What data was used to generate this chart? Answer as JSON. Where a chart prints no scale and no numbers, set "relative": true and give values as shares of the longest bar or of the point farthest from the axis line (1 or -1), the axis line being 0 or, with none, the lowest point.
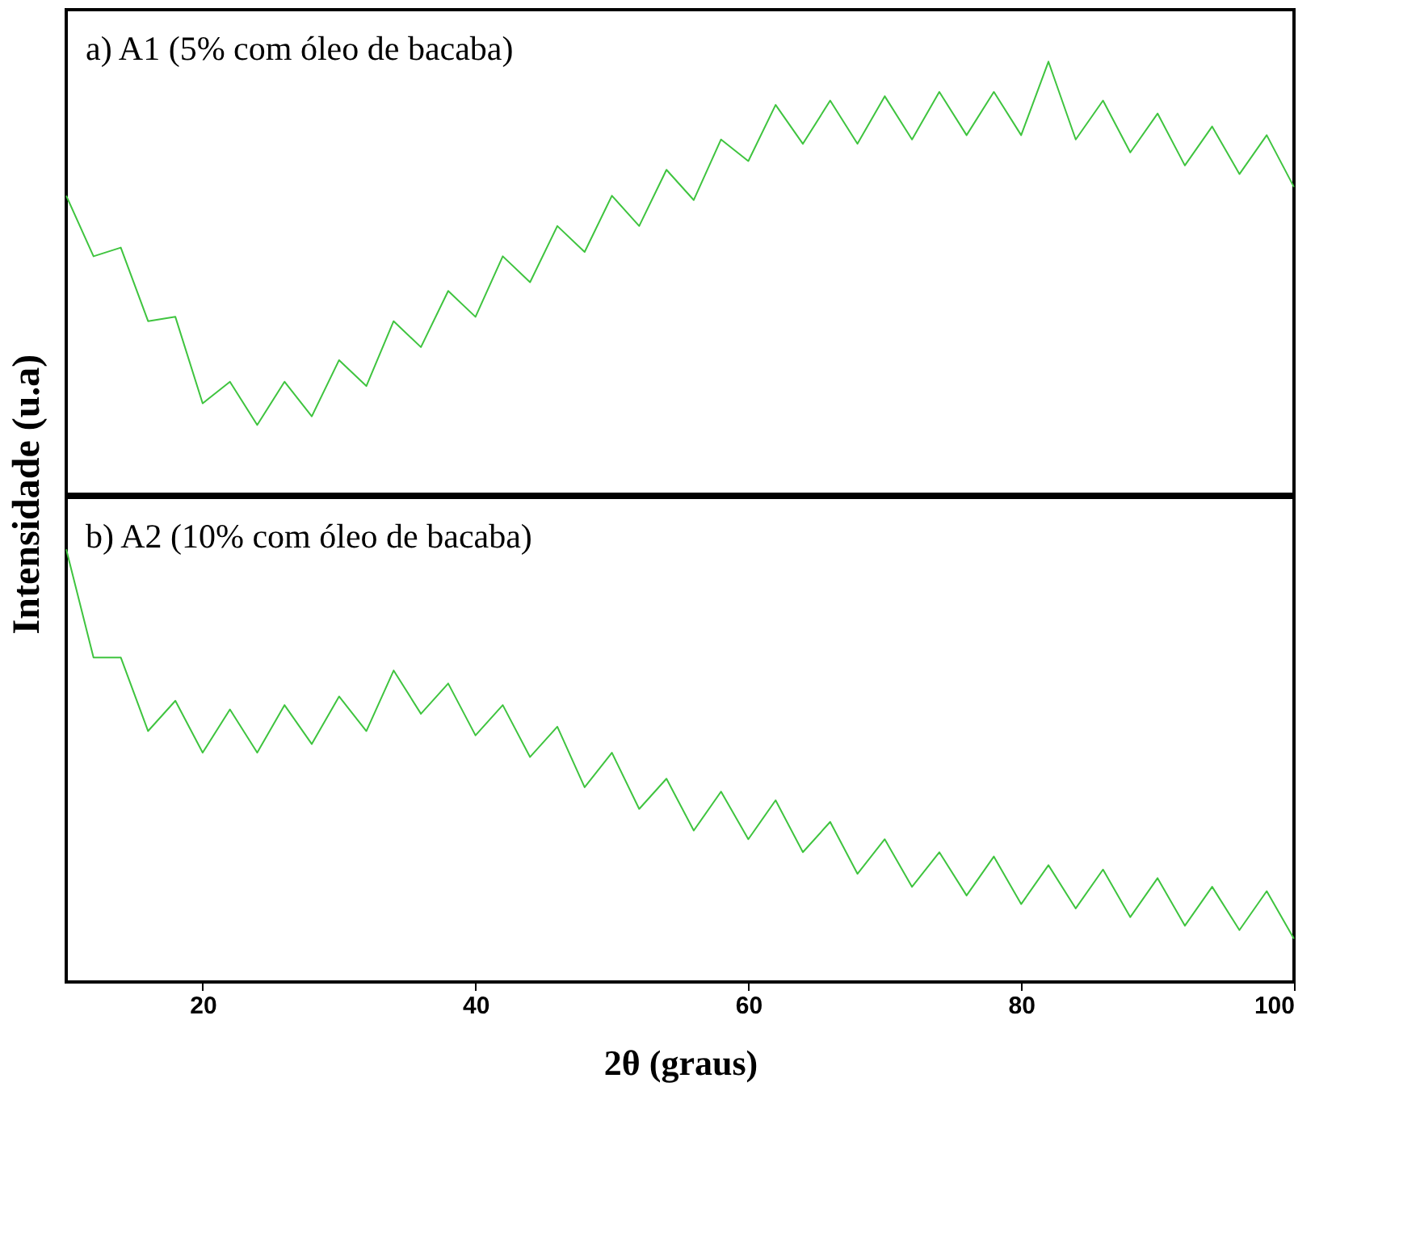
{
  "chart_data": [
    {
      "type": "line",
      "relative": true,
      "ylabel": "Intensidade (u.a)",
      "annotations": [
        "a) A1 (5% com óleo de bacaba)"
      ],
      "xlim": [
        10,
        100
      ],
      "xticks": [
        20,
        40,
        60,
        80,
        100
      ],
      "tick_labels": false,
      "grid": false,
      "x": [
        10,
        12,
        14,
        16,
        18,
        20,
        22,
        24,
        26,
        28,
        30,
        32,
        34,
        36,
        38,
        40,
        42,
        44,
        46,
        48,
        50,
        52,
        54,
        56,
        58,
        60,
        62,
        64,
        66,
        68,
        70,
        72,
        74,
        76,
        78,
        80,
        82,
        84,
        86,
        88,
        90,
        92,
        94,
        96,
        98,
        100
      ],
      "series": [
        {
          "color": "#3fc43f",
          "values": [
            0.69,
            0.55,
            0.57,
            0.4,
            0.41,
            0.21,
            0.26,
            0.16,
            0.26,
            0.18,
            0.31,
            0.25,
            0.4,
            0.34,
            0.47,
            0.41,
            0.55,
            0.49,
            0.62,
            0.56,
            0.69,
            0.62,
            0.75,
            0.68,
            0.82,
            0.77,
            0.9,
            0.81,
            0.91,
            0.81,
            0.92,
            0.82,
            0.93,
            0.83,
            0.93,
            0.83,
            1.0,
            0.82,
            0.91,
            0.79,
            0.88,
            0.76,
            0.85,
            0.74,
            0.83,
            0.71
          ]
        }
      ]
    },
    {
      "type": "line",
      "relative": true,
      "xlabel": "2θ (graus)",
      "annotations": [
        "b) A2 (10% com óleo de bacaba)"
      ],
      "xlim": [
        10,
        100
      ],
      "xticks": [
        20,
        40,
        60,
        80,
        100
      ],
      "tick_labels": "x",
      "grid": false,
      "x": [
        10,
        12,
        14,
        16,
        18,
        20,
        22,
        24,
        26,
        28,
        30,
        32,
        34,
        36,
        38,
        40,
        42,
        44,
        46,
        48,
        50,
        52,
        54,
        56,
        58,
        60,
        62,
        64,
        66,
        68,
        70,
        72,
        74,
        76,
        78,
        80,
        82,
        84,
        86,
        88,
        90,
        92,
        94,
        96,
        98,
        100
      ],
      "series": [
        {
          "color": "#3fc43f",
          "values": [
            1.0,
            0.75,
            0.75,
            0.58,
            0.65,
            0.53,
            0.63,
            0.53,
            0.64,
            0.55,
            0.66,
            0.58,
            0.72,
            0.62,
            0.69,
            0.57,
            0.64,
            0.52,
            0.59,
            0.45,
            0.53,
            0.4,
            0.47,
            0.35,
            0.44,
            0.33,
            0.42,
            0.3,
            0.37,
            0.25,
            0.33,
            0.22,
            0.3,
            0.2,
            0.29,
            0.18,
            0.27,
            0.17,
            0.26,
            0.15,
            0.24,
            0.13,
            0.22,
            0.12,
            0.21,
            0.1
          ]
        }
      ]
    }
  ]
}
